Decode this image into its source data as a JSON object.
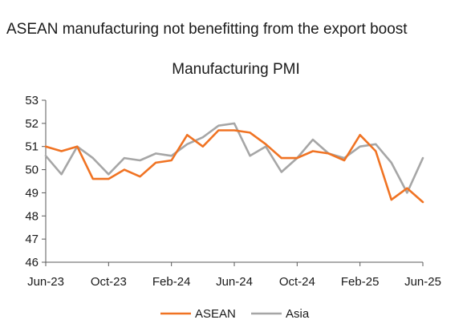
{
  "headline": "ASEAN manufacturing not benefitting from the export boost",
  "chart_data": {
    "type": "line",
    "title": "Manufacturing PMI",
    "xlabel": "",
    "ylabel": "",
    "ylim": [
      46,
      53
    ],
    "yticks": [
      46,
      47,
      48,
      49,
      50,
      51,
      52,
      53
    ],
    "x": [
      "Jun-23",
      "Jul-23",
      "Aug-23",
      "Sep-23",
      "Oct-23",
      "Nov-23",
      "Dec-23",
      "Jan-24",
      "Feb-24",
      "Mar-24",
      "Apr-24",
      "May-24",
      "Jun-24",
      "Jul-24",
      "Aug-24",
      "Sep-24",
      "Oct-24",
      "Nov-24",
      "Dec-24",
      "Jan-25",
      "Feb-25",
      "Mar-25",
      "Apr-25",
      "May-25",
      "Jun-25"
    ],
    "x_tick_labels": [
      "Jun-23",
      "Oct-23",
      "Feb-24",
      "Jun-24",
      "Oct-24",
      "Feb-25",
      "Jun-25"
    ],
    "series": [
      {
        "name": "ASEAN",
        "color": "#f07323",
        "values": [
          51.0,
          50.8,
          51.0,
          49.6,
          49.6,
          50.0,
          49.7,
          50.3,
          50.4,
          51.5,
          51.0,
          51.7,
          51.7,
          51.6,
          51.1,
          50.5,
          50.5,
          50.8,
          50.7,
          50.4,
          51.5,
          50.8,
          48.7,
          49.2,
          48.6
        ]
      },
      {
        "name": "Asia",
        "color": "#a6a6a6",
        "values": [
          50.6,
          49.8,
          51.0,
          50.5,
          49.8,
          50.5,
          50.4,
          50.7,
          50.6,
          51.1,
          51.4,
          51.9,
          52.0,
          50.6,
          51.0,
          49.9,
          50.5,
          51.3,
          50.7,
          50.5,
          51.0,
          51.1,
          50.3,
          49.0,
          50.5
        ]
      }
    ],
    "grid": false,
    "legend": "bottom"
  }
}
